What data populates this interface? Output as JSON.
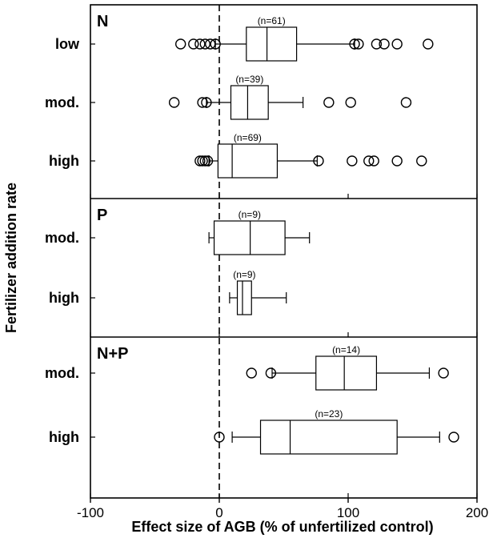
{
  "chart_data": {
    "type": "boxplot",
    "title": "",
    "xlabel": "Effect size of AGB (% of unfertilized control)",
    "ylabel": "Fertilizer addition rate",
    "xlim": [
      -100,
      200
    ],
    "xticks": [
      -100,
      0,
      100,
      200
    ],
    "reference_line": 0,
    "panels": [
      {
        "label": "N",
        "rows": [
          {
            "category": "low",
            "n_label": "(n=61)",
            "whisker_low": -3,
            "q1": 21,
            "median": 37,
            "q3": 60,
            "whisker_high": 105,
            "outliers": [
              -30,
              -20,
              -15,
              -11,
              -7,
              -3,
              105,
              108,
              122,
              128,
              138,
              162
            ]
          },
          {
            "category": "mod.",
            "n_label": "(n=39)",
            "whisker_low": -10,
            "q1": 9,
            "median": 22,
            "q3": 38,
            "whisker_high": 65,
            "outliers": [
              -35,
              -13,
              -10,
              85,
              102,
              145
            ]
          },
          {
            "category": "high",
            "n_label": "(n=69)",
            "whisker_low": -8,
            "q1": -1,
            "median": 10,
            "q3": 45,
            "whisker_high": 76,
            "outliers": [
              -15,
              -13,
              -11,
              -9,
              77,
              103,
              116,
              120,
              138,
              157
            ]
          }
        ]
      },
      {
        "label": "P",
        "rows": [
          {
            "category": "mod.",
            "n_label": "(n=9)",
            "whisker_low": -8,
            "q1": -4,
            "median": 24,
            "q3": 51,
            "whisker_high": 70,
            "outliers": []
          },
          {
            "category": "high",
            "n_label": "(n=9)",
            "whisker_low": 8,
            "q1": 14,
            "median": 18,
            "q3": 25,
            "whisker_high": 52,
            "outliers": []
          }
        ]
      },
      {
        "label": "N+P",
        "rows": [
          {
            "category": "mod.",
            "n_label": "(n=14)",
            "whisker_low": 41,
            "q1": 75,
            "median": 97,
            "q3": 122,
            "whisker_high": 163,
            "outliers": [
              25,
              40,
              174
            ]
          },
          {
            "category": "high",
            "n_label": "(n=23)",
            "whisker_low": 10,
            "q1": 32,
            "median": 55,
            "q3": 138,
            "whisker_high": 171,
            "outliers": [
              0,
              182
            ]
          }
        ]
      }
    ]
  }
}
